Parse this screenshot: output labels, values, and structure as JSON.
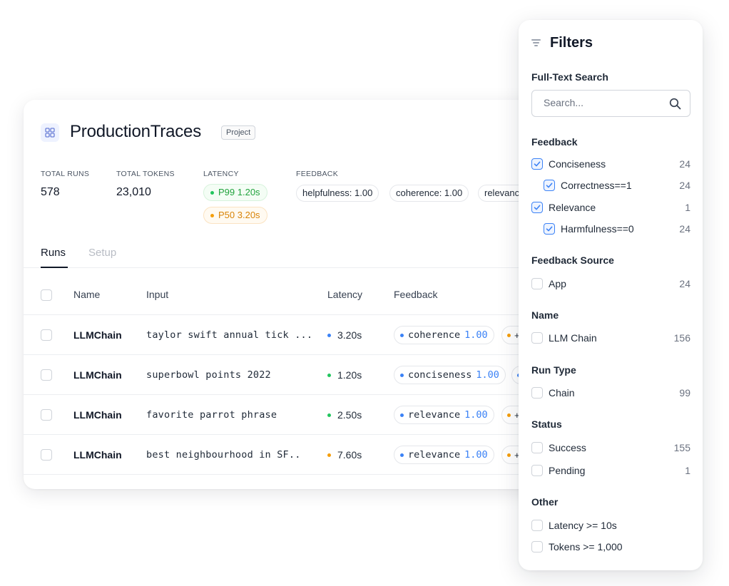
{
  "project": {
    "title": "ProductionTraces",
    "tag": "Project",
    "stats": {
      "total_runs_label": "TOTAL RUNS",
      "total_runs_value": "578",
      "total_tokens_label": "TOTAL TOKENS",
      "total_tokens_value": "23,010",
      "latency_label": "LATENCY",
      "p99": "P99 1.20s",
      "p50": "P50 3.20s",
      "feedback_label": "FEEDBACK",
      "feedback_chips": [
        "helpfulness: 1.00",
        "coherence: 1.00",
        "relevance"
      ]
    },
    "tabs": [
      "Runs",
      "Setup"
    ],
    "table": {
      "headers": [
        "Name",
        "Input",
        "Latency",
        "Feedback"
      ],
      "rows": [
        {
          "name": "LLMChain",
          "input": "taylor swift annual tick ...",
          "latency": "3.20s",
          "latency_color": "#3b82f6",
          "feedback_name": "coherence",
          "feedback_score": "1.00",
          "more_dot_color": "#f59e0b"
        },
        {
          "name": "LLMChain",
          "input": "superbowl points 2022",
          "latency": "1.20s",
          "latency_color": "#22c55e",
          "feedback_name": "conciseness",
          "feedback_score": "1.00",
          "more_dot_color": "#3b82f6"
        },
        {
          "name": "LLMChain",
          "input": "favorite parrot phrase",
          "latency": "2.50s",
          "latency_color": "#22c55e",
          "feedback_name": "relevance",
          "feedback_score": "1.00",
          "more_dot_color": "#f59e0b"
        },
        {
          "name": "LLMChain",
          "input": "best neighbourhood in SF..",
          "latency": "7.60s",
          "latency_color": "#f59e0b",
          "feedback_name": "relevance",
          "feedback_score": "1.00",
          "more_dot_color": "#f59e0b"
        }
      ]
    }
  },
  "filters": {
    "title": "Filters",
    "full_text_search": {
      "title": "Full-Text Search",
      "placeholder": "Search..."
    },
    "feedback": {
      "title": "Feedback",
      "items": [
        {
          "label": "Conciseness",
          "count": "24",
          "checked": true
        },
        {
          "label": "Correctness==1",
          "count": "24",
          "checked": true
        },
        {
          "label": "Relevance",
          "count": "1",
          "checked": true
        },
        {
          "label": "Harmfulness==0",
          "count": "24",
          "checked": true
        }
      ]
    },
    "feedback_source": {
      "title": "Feedback Source",
      "items": [
        {
          "label": "App",
          "count": "24"
        }
      ]
    },
    "name": {
      "title": "Name",
      "items": [
        {
          "label": "LLM Chain",
          "count": "156"
        }
      ]
    },
    "run_type": {
      "title": "Run Type",
      "items": [
        {
          "label": "Chain",
          "count": "99"
        }
      ]
    },
    "status": {
      "title": "Status",
      "items": [
        {
          "label": "Success",
          "count": "155"
        },
        {
          "label": "Pending",
          "count": "1"
        }
      ]
    },
    "other": {
      "title": "Other",
      "items": [
        {
          "label": "Latency >= 10s"
        },
        {
          "label": "Tokens >= 1,000"
        }
      ]
    }
  },
  "colors": {
    "accent": "#3b82f6",
    "green": "#22c55e",
    "orange": "#f59e0b"
  }
}
